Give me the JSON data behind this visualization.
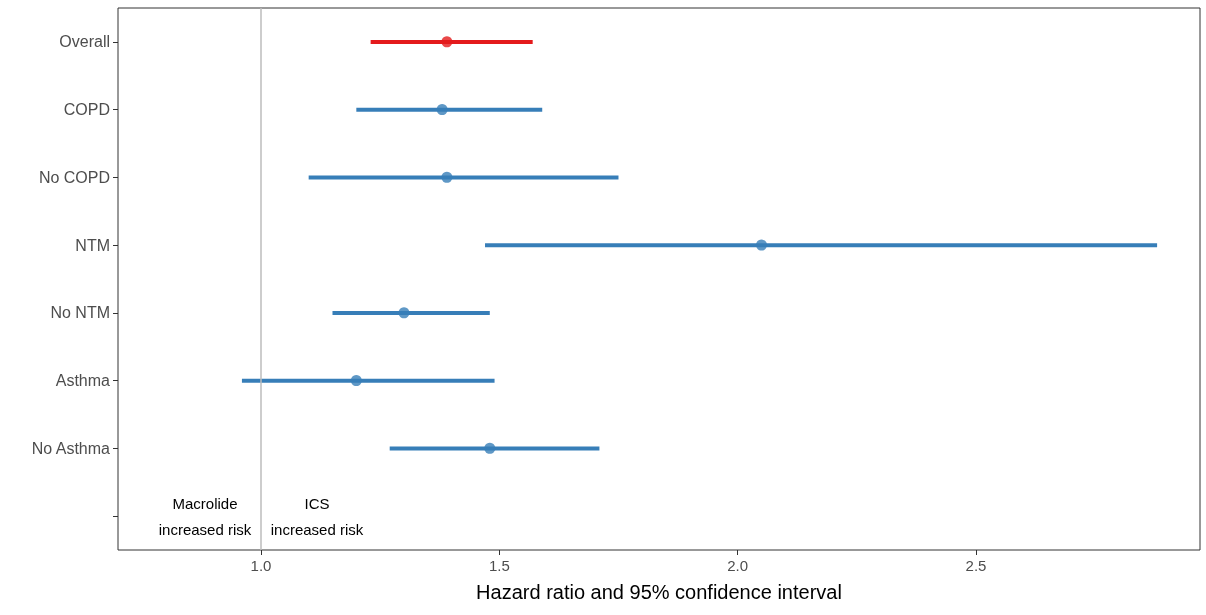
{
  "chart_data": {
    "type": "scatter",
    "orientation": "horizontal",
    "xlabel": "Hazard ratio and 95% confidence interval",
    "categories": [
      "Overall",
      "COPD",
      "No COPD",
      "NTM",
      "No NTM",
      "Asthma",
      "No Asthma",
      null
    ],
    "values": [
      1.39,
      1.38,
      1.39,
      2.05,
      1.3,
      1.2,
      1.48,
      null
    ],
    "errors": [
      [
        1.23,
        1.57
      ],
      [
        1.2,
        1.59
      ],
      [
        1.1,
        1.75
      ],
      [
        1.47,
        2.88
      ],
      [
        1.15,
        1.48
      ],
      [
        0.96,
        1.49
      ],
      [
        1.27,
        1.71
      ],
      null
    ],
    "colors": [
      "#e41a1c",
      "#377eb8",
      "#377eb8",
      "#377eb8",
      "#377eb8",
      "#377eb8",
      "#377eb8",
      null
    ],
    "marker": "circle",
    "grid": false,
    "xlim": [
      0.7,
      2.97
    ],
    "xticks": [
      {
        "value": 1,
        "label": "1.0"
      },
      {
        "value": 1.5,
        "label": "1.5"
      },
      {
        "value": 2,
        "label": "2.0"
      },
      {
        "value": 2.5,
        "label": "2.5"
      }
    ],
    "ref_lines": [
      {
        "axis": "x",
        "value": 1,
        "label": null,
        "color": "#bdbdbd"
      }
    ],
    "annotations": [
      "Macrolide\nincreased risk",
      "ICS\nincreased risk"
    ]
  }
}
